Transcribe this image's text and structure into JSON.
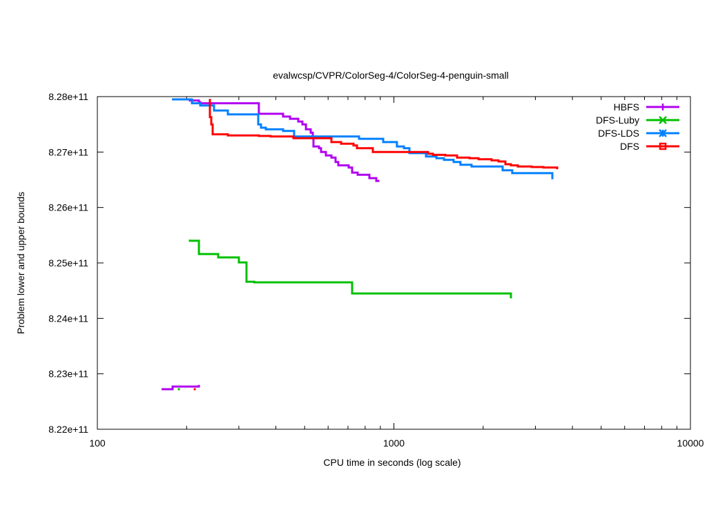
{
  "chart_data": {
    "type": "line",
    "title": "evalwcsp/CVPR/ColorSeg-4/ColorSeg-4-penguin-small",
    "xlabel": "CPU time in seconds (log scale)",
    "ylabel": "Problem lower and upper bounds",
    "xscale": "log",
    "xlim": [
      100,
      10000
    ],
    "ylim": [
      822000000000.0,
      828000000000.0
    ],
    "xticks": [
      100,
      1000,
      10000
    ],
    "xtick_labels": [
      "100",
      "1000",
      "10000"
    ],
    "yticks": [
      822000000000.0,
      823000000000.0,
      824000000000.0,
      825000000000.0,
      826000000000.0,
      827000000000.0,
      828000000000.0
    ],
    "ytick_labels": [
      "8.22e+11",
      "8.23e+11",
      "8.24e+11",
      "8.25e+11",
      "8.26e+11",
      "8.27e+11",
      "8.28e+11"
    ],
    "grid": false,
    "legend_position": "top-right",
    "series": [
      {
        "name": "HBFS",
        "color": "#b000f0",
        "marker": "plus",
        "upper": [
          [
            178.5,
            827950000000.0
          ],
          [
            205.1,
            827930000000.0
          ],
          [
            220,
            827900000000.0
          ],
          [
            222.3,
            827880000000.0
          ],
          [
            350.5,
            827690000000.0
          ],
          [
            423,
            827640000000.0
          ],
          [
            446.4,
            827600000000.0
          ],
          [
            476,
            827550000000.0
          ],
          [
            491.6,
            827500000000.0
          ],
          [
            505,
            827410000000.0
          ],
          [
            524,
            827350000000.0
          ],
          [
            532.6,
            827250000000.0
          ],
          [
            535.6,
            827100000000.0
          ],
          [
            559,
            827070000000.0
          ],
          [
            568,
            827000000000.0
          ],
          [
            589.8,
            826940000000.0
          ],
          [
            615.5,
            826900000000.0
          ],
          [
            635.8,
            826820000000.0
          ],
          [
            649.6,
            826760000000.0
          ],
          [
            703.9,
            826720000000.0
          ],
          [
            723,
            826630000000.0
          ],
          [
            754.8,
            826590000000.0
          ],
          [
            826.8,
            826530000000.0
          ],
          [
            872.2,
            826480000000.0
          ],
          [
            886.5,
            826460000000.0
          ]
        ],
        "lower": [
          [
            164.6,
            822722000000.0
          ],
          [
            179.4,
            822771000000.0
          ],
          [
            220,
            822771000000.0
          ],
          [
            220,
            822800000000.0
          ]
        ]
      },
      {
        "name": "DFS-Luby",
        "color": "#00c000",
        "marker": "cross",
        "upper": [
          [
            205.1,
            825420000000.0
          ],
          [
            205.1,
            825400000000.0
          ],
          [
            220,
            825160000000.0
          ],
          [
            255.6,
            825100000000.0
          ],
          [
            300.1,
            825010000000.0
          ],
          [
            318.4,
            824660000000.0
          ],
          [
            337.8,
            824650000000.0
          ],
          [
            723,
            824450000000.0
          ],
          [
            2481,
            824450000000.0
          ],
          [
            2481,
            824360000000.0
          ]
        ],
        "lower": [
          [
            188.3,
            822722000000.0
          ]
        ]
      },
      {
        "name": "DFS-LDS",
        "color": "#0080ff",
        "marker": "star",
        "upper": [
          [
            178.5,
            827950000000.0
          ],
          [
            208.4,
            827880000000.0
          ],
          [
            222.3,
            827840000000.0
          ],
          [
            247.4,
            827750000000.0
          ],
          [
            275.4,
            827680000000.0
          ],
          [
            348.7,
            827500000000.0
          ],
          [
            356.2,
            827440000000.0
          ],
          [
            369.9,
            827410000000.0
          ],
          [
            423,
            827380000000.0
          ],
          [
            460.9,
            827280000000.0
          ],
          [
            762.9,
            827240000000.0
          ],
          [
            920.2,
            827180000000.0
          ],
          [
            1024,
            827100000000.0
          ],
          [
            1081,
            827070000000.0
          ],
          [
            1128,
            826980000000.0
          ],
          [
            1283,
            826920000000.0
          ],
          [
            1391,
            826890000000.0
          ],
          [
            1475,
            826860000000.0
          ],
          [
            1590,
            826820000000.0
          ],
          [
            1677,
            826770000000.0
          ],
          [
            1828,
            826740000000.0
          ],
          [
            2326,
            826670000000.0
          ],
          [
            2507,
            826620000000.0
          ],
          [
            3423,
            826560000000.0
          ],
          [
            3423,
            826510000000.0
          ]
        ],
        "lower": []
      },
      {
        "name": "DFS",
        "color": "#ff0000",
        "marker": "square",
        "upper": [
          [
            239.6,
            827960000000.0
          ],
          [
            239.6,
            827630000000.0
          ],
          [
            242.2,
            827500000000.0
          ],
          [
            244.8,
            827320000000.0
          ],
          [
            275.4,
            827300000000.0
          ],
          [
            350.5,
            827290000000.0
          ],
          [
            384,
            827280000000.0
          ],
          [
            458.4,
            827250000000.0
          ],
          [
            615.5,
            827180000000.0
          ],
          [
            663.6,
            827150000000.0
          ],
          [
            730.8,
            827120000000.0
          ],
          [
            750.8,
            827070000000.0
          ],
          [
            849.2,
            827000000000.0
          ],
          [
            1304,
            826970000000.0
          ],
          [
            1354,
            826950000000.0
          ],
          [
            1491,
            826940000000.0
          ],
          [
            1633,
            826900000000.0
          ],
          [
            1799,
            826890000000.0
          ],
          [
            1929,
            826870000000.0
          ],
          [
            2135,
            826850000000.0
          ],
          [
            2253,
            826830000000.0
          ],
          [
            2377,
            826780000000.0
          ],
          [
            2481,
            826760000000.0
          ],
          [
            2618,
            826740000000.0
          ],
          [
            2914,
            826730000000.0
          ],
          [
            3192,
            826720000000.0
          ],
          [
            3553,
            826690000000.0
          ]
        ],
        "lower": [
          [
            213,
            822722000000.0
          ]
        ]
      }
    ]
  }
}
